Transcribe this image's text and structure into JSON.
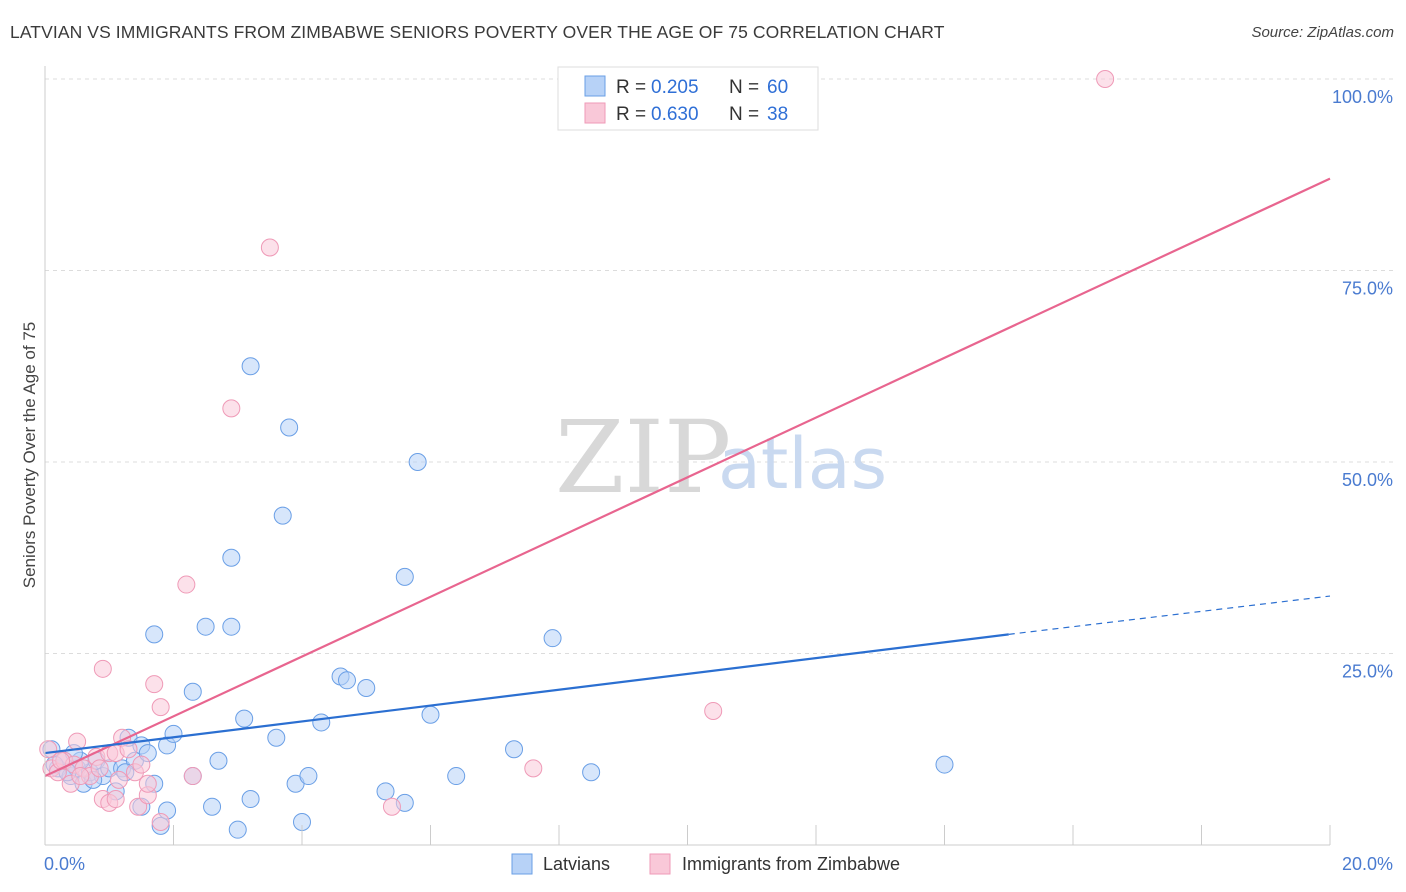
{
  "title": "LATVIAN VS IMMIGRANTS FROM ZIMBABWE SENIORS POVERTY OVER THE AGE OF 75 CORRELATION CHART",
  "source": "Source: ZipAtlas.com",
  "watermark": {
    "zip": "ZIP",
    "atlas": "atlas"
  },
  "chart_data": {
    "type": "scatter",
    "ylabel": "Seniors Poverty Over the Age of 75",
    "xlim": [
      0,
      20
    ],
    "ylim": [
      0,
      100
    ],
    "x_tick_labels": [
      "0.0%",
      "20.0%"
    ],
    "y_ticks": [
      25,
      50,
      75,
      100
    ],
    "y_tick_labels": [
      "25.0%",
      "50.0%",
      "75.0%",
      "100.0%"
    ],
    "grid": true,
    "legend": {
      "position": "top-center",
      "entries": [
        {
          "r_label": "R =",
          "r_value": "0.205",
          "n_label": "N =",
          "n_value": "60"
        },
        {
          "r_label": "R =",
          "r_value": "0.630",
          "n_label": "N =",
          "n_value": "38"
        }
      ]
    },
    "series": [
      {
        "name": "Latvians",
        "color": "#6a9fe6",
        "fill": "#b7d2f7",
        "line_color": "#2b6fd1",
        "trend": {
          "x": [
            0,
            15
          ],
          "y": [
            12,
            27.5
          ],
          "dashed_to_x": 20,
          "dashed_to_y": 32.5
        },
        "points": [
          [
            0.1,
            12.5
          ],
          [
            0.2,
            10
          ],
          [
            0.3,
            11
          ],
          [
            0.4,
            9
          ],
          [
            0.5,
            10
          ],
          [
            0.6,
            8
          ],
          [
            0.7,
            9.5
          ],
          [
            0.8,
            11
          ],
          [
            0.9,
            9
          ],
          [
            1.0,
            10
          ],
          [
            1.1,
            7
          ],
          [
            1.2,
            10
          ],
          [
            1.3,
            14
          ],
          [
            1.4,
            11
          ],
          [
            1.5,
            5
          ],
          [
            1.5,
            13
          ],
          [
            1.6,
            12
          ],
          [
            1.7,
            8
          ],
          [
            1.7,
            27.5
          ],
          [
            1.8,
            2.5
          ],
          [
            1.9,
            13
          ],
          [
            1.9,
            4.5
          ],
          [
            2.0,
            14.5
          ],
          [
            2.3,
            20
          ],
          [
            2.3,
            9
          ],
          [
            2.5,
            28.5
          ],
          [
            2.6,
            5
          ],
          [
            2.7,
            11
          ],
          [
            2.9,
            28.5
          ],
          [
            2.9,
            37.5
          ],
          [
            3.0,
            2
          ],
          [
            3.1,
            16.5
          ],
          [
            3.2,
            62.5
          ],
          [
            3.2,
            6
          ],
          [
            3.6,
            14
          ],
          [
            3.7,
            43
          ],
          [
            3.8,
            54.5
          ],
          [
            3.9,
            8
          ],
          [
            4.0,
            3
          ],
          [
            4.1,
            9
          ],
          [
            4.3,
            16
          ],
          [
            4.6,
            22
          ],
          [
            4.7,
            21.5
          ],
          [
            5.0,
            20.5
          ],
          [
            5.3,
            7
          ],
          [
            5.6,
            35
          ],
          [
            5.6,
            5.5
          ],
          [
            5.8,
            50
          ],
          [
            6.0,
            17
          ],
          [
            6.4,
            9
          ],
          [
            7.3,
            12.5
          ],
          [
            7.9,
            27
          ],
          [
            8.5,
            9.5
          ],
          [
            14.0,
            10.5
          ],
          [
            0.15,
            10.5
          ],
          [
            0.35,
            9.5
          ],
          [
            0.55,
            11
          ],
          [
            0.75,
            8.5
          ],
          [
            0.45,
            12
          ],
          [
            1.25,
            9.5
          ]
        ]
      },
      {
        "name": "Immigrants from Zimbabwe",
        "color": "#ef9ab7",
        "fill": "#f9c8d8",
        "line_color": "#e8658f",
        "trend": {
          "x": [
            0,
            20
          ],
          "y": [
            9,
            87
          ]
        },
        "points": [
          [
            0.05,
            12.5
          ],
          [
            0.1,
            10
          ],
          [
            0.2,
            9.5
          ],
          [
            0.3,
            11
          ],
          [
            0.4,
            8
          ],
          [
            0.45,
            10.5
          ],
          [
            0.5,
            13.5
          ],
          [
            0.6,
            10
          ],
          [
            0.7,
            9
          ],
          [
            0.8,
            11.5
          ],
          [
            0.9,
            6
          ],
          [
            0.9,
            23
          ],
          [
            1.0,
            12
          ],
          [
            1.0,
            5.5
          ],
          [
            1.1,
            6
          ],
          [
            1.1,
            12
          ],
          [
            1.2,
            14
          ],
          [
            1.3,
            12.5
          ],
          [
            1.4,
            9.5
          ],
          [
            1.45,
            5
          ],
          [
            1.5,
            10.5
          ],
          [
            1.6,
            6.5
          ],
          [
            1.6,
            8
          ],
          [
            1.7,
            21
          ],
          [
            1.8,
            3
          ],
          [
            1.8,
            18
          ],
          [
            2.2,
            34
          ],
          [
            2.3,
            9
          ],
          [
            2.9,
            57
          ],
          [
            3.5,
            78
          ],
          [
            5.4,
            5
          ],
          [
            7.6,
            10
          ],
          [
            10.4,
            17.5
          ],
          [
            16.5,
            100
          ],
          [
            0.25,
            11
          ],
          [
            0.55,
            9
          ],
          [
            0.85,
            10
          ],
          [
            1.15,
            8.5
          ]
        ]
      }
    ]
  },
  "bottom_legend": {
    "items": [
      "Latvians",
      "Immigrants from Zimbabwe"
    ]
  }
}
